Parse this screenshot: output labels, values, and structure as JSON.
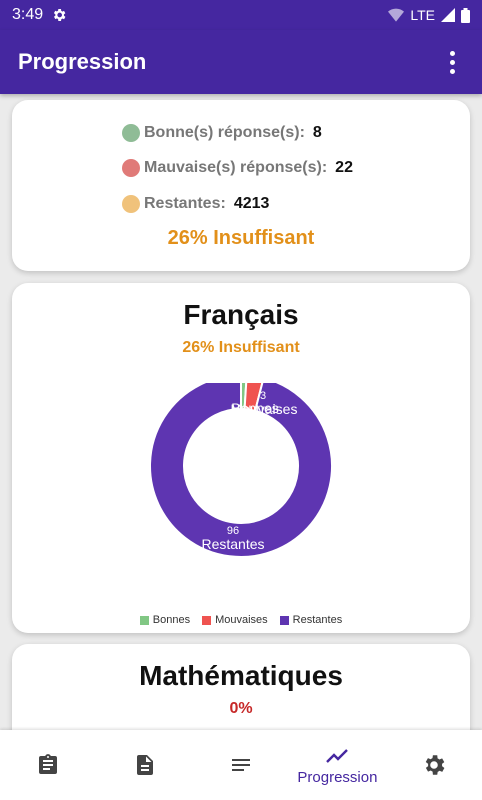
{
  "status_bar": {
    "time": "3:49",
    "network": "LTE",
    "gear_icon": "settings-icon"
  },
  "app_bar": {
    "title": "Progression",
    "menu_icon": "more-vert-icon"
  },
  "summary_card": {
    "good_label": "Bonne(s) réponse(s):",
    "good_value": "8",
    "bad_label": "Mauvaise(s) réponse(s):",
    "bad_value": "22",
    "remaining_label": "Restantes:",
    "remaining_value": "4213",
    "result": "26% Insuffisant"
  },
  "subjects": [
    {
      "title": "Français",
      "result": "26% Insuffisant",
      "result_color": "#e2901a",
      "chart_data": {
        "type": "pie",
        "slices": [
          {
            "name": "Bonnes",
            "value": 1,
            "color": "#81c784"
          },
          {
            "name": "Mouvaises",
            "value": 3,
            "color": "#ef5350"
          },
          {
            "name": "Restantes",
            "value": 96,
            "color": "#5e35b1"
          }
        ],
        "labels_visible": [
          "Bonnes",
          "Mouvaises",
          "Restantes"
        ],
        "value_labels": [
          "3",
          "96"
        ],
        "legend": [
          "Bonnes",
          "Mouvaises",
          "Restantes"
        ],
        "legend_placement": "bottom"
      }
    },
    {
      "title": "Mathématiques",
      "result": "0%",
      "result_color": "#c62828"
    }
  ],
  "bottom_nav": {
    "items": [
      {
        "icon": "clipboard-icon",
        "label": ""
      },
      {
        "icon": "document-icon",
        "label": ""
      },
      {
        "icon": "list-icon",
        "label": ""
      },
      {
        "icon": "trending-icon",
        "label": "Progression"
      },
      {
        "icon": "settings-icon",
        "label": ""
      }
    ]
  },
  "colors": {
    "primary": "#4527a0",
    "good": "#81c784",
    "bad": "#e57373",
    "remaining": "#f0c27b",
    "warning": "#e2901a"
  }
}
